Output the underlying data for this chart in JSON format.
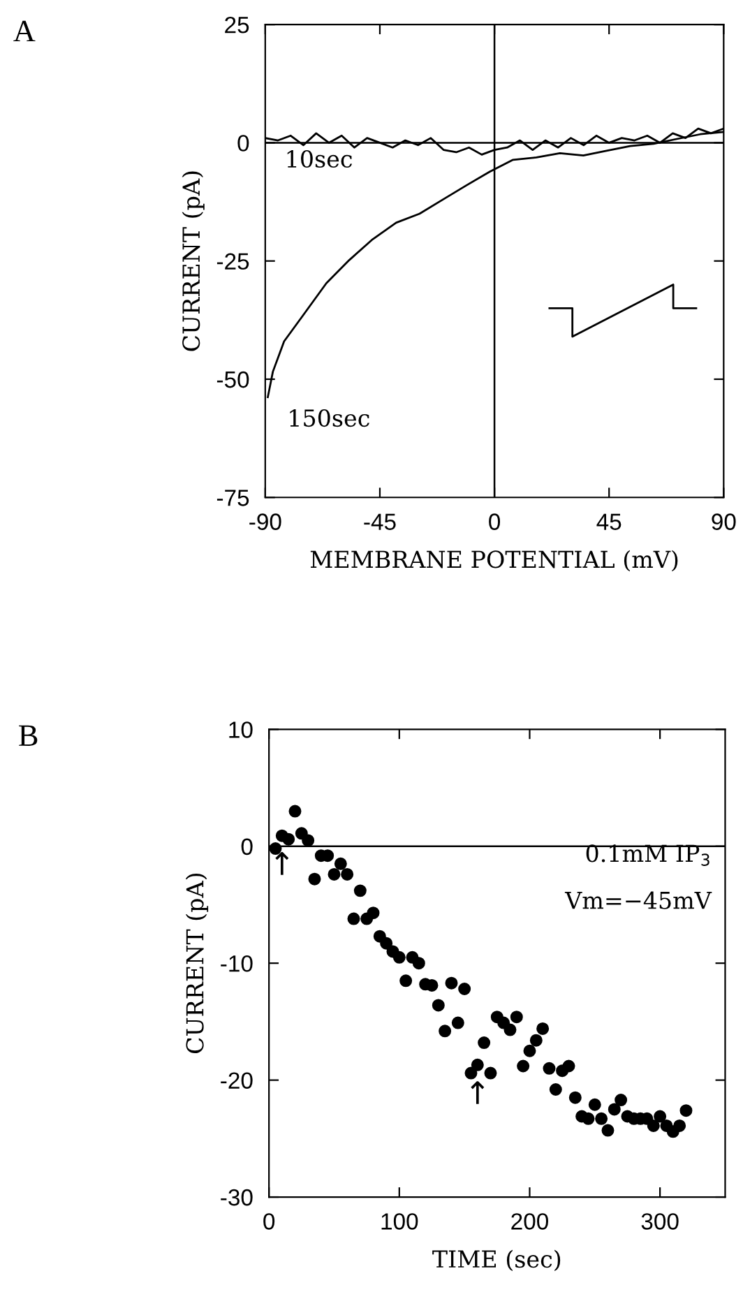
{
  "chart_data": [
    {
      "type": "line",
      "title": "A",
      "xlabel": "MEMBRANE POTENTIAL (mV)",
      "ylabel": "CURRENT (pA)",
      "xlim": [
        -90,
        90
      ],
      "xticks": [
        -90,
        -45,
        0,
        45,
        90
      ],
      "ylim": [
        -75,
        25
      ],
      "yticks": [
        -75,
        -50,
        -25,
        0,
        25
      ],
      "grid": false,
      "legend": false,
      "marker": "none",
      "line_style": "solid",
      "ref_lines": [
        {
          "axis": "x",
          "value": 0,
          "color": "#000000"
        },
        {
          "axis": "y",
          "value": 0,
          "color": "#000000"
        }
      ],
      "series": [
        {
          "name": "10sec",
          "color": "#000000",
          "x": [
            -90,
            -85,
            -80,
            -75,
            -70,
            -65,
            -60,
            -55,
            -50,
            -45,
            -40,
            -35,
            -30,
            -25,
            -20,
            -15,
            -10,
            -5,
            0,
            5,
            10,
            15,
            20,
            25,
            30,
            35,
            40,
            45,
            50,
            55,
            60,
            65,
            70,
            75,
            80,
            85,
            90
          ],
          "values": [
            1,
            0.5,
            1.5,
            -0.5,
            2,
            0,
            1.5,
            -1,
            1,
            0,
            -1,
            0.5,
            -0.5,
            1,
            -1.5,
            -2,
            -1,
            -2.5,
            -1.5,
            -1,
            0.5,
            -1.5,
            0.5,
            -1,
            1,
            -0.5,
            1.5,
            0,
            1,
            0.5,
            1.5,
            0,
            2,
            1,
            3,
            2,
            3
          ]
        },
        {
          "name": "150sec",
          "color": "#000000",
          "x": [
            -89,
            -87,
            -82.6,
            -75.3,
            -66,
            -57,
            -47.8,
            -38.6,
            -29.4,
            -20.2,
            -11,
            -1.8,
            7.3,
            16.5,
            25.7,
            34.9,
            44,
            53.3,
            62.5,
            71.6,
            80.8,
            90
          ],
          "values": [
            -53.8,
            -48.4,
            -42,
            -36.6,
            -29.7,
            -24.8,
            -20.4,
            -16.9,
            -15,
            -12,
            -9,
            -6.1,
            -3.6,
            -3.1,
            -2.2,
            -2.7,
            -1.7,
            -0.7,
            -0.2,
            0.8,
            1.8,
            2.3
          ]
        }
      ]
    },
    {
      "type": "scatter",
      "title": "B",
      "xlabel": "TIME (sec)",
      "ylabel": "CURRENT (pA)",
      "xlim": [
        0,
        350
      ],
      "xticks": [
        0,
        100,
        200,
        300
      ],
      "ylim": [
        -30,
        10
      ],
      "yticks": [
        -30,
        -20,
        -10,
        0,
        10
      ],
      "grid": false,
      "legend": false,
      "marker": "circle",
      "ref_lines": [
        {
          "axis": "y",
          "value": 0,
          "color": "#000000"
        }
      ],
      "annotations": [
        "0.1mM IP$_{3}$",
        "Vm=−45mV",
        {
          "text": "↑",
          "x": 10,
          "y": 0.9
        },
        {
          "text": "↑",
          "x": 160,
          "y": -18.7
        }
      ],
      "series": [
        {
          "color": "#000000",
          "x": [
            5,
            10,
            15,
            20,
            25,
            30,
            35,
            40,
            45,
            50,
            55,
            60,
            65,
            70,
            75,
            80,
            85,
            90,
            95,
            100,
            105,
            110,
            115,
            120,
            125,
            130,
            135,
            140,
            145,
            150,
            155,
            160,
            165,
            170,
            175,
            180,
            185,
            190,
            195,
            200,
            205,
            210,
            215,
            220,
            225,
            230,
            235,
            240,
            245,
            250,
            255,
            260,
            265,
            270,
            275,
            280,
            285,
            290,
            295,
            300,
            305,
            310,
            315,
            320
          ],
          "values": [
            -0.2,
            0.9,
            0.6,
            3.0,
            1.1,
            0.5,
            -2.8,
            -0.8,
            -0.8,
            -2.4,
            -1.5,
            -2.4,
            -6.2,
            -3.8,
            -6.2,
            -5.7,
            -7.7,
            -8.3,
            -9.0,
            -9.5,
            -11.5,
            -9.5,
            -10.0,
            -11.8,
            -11.9,
            -13.6,
            -15.8,
            -11.7,
            -15.1,
            -12.2,
            -19.4,
            -18.7,
            -16.8,
            -19.4,
            -14.6,
            -15.1,
            -15.7,
            -14.6,
            -18.8,
            -17.5,
            -16.6,
            -15.6,
            -19.0,
            -20.8,
            -19.2,
            -18.8,
            -21.5,
            -23.1,
            -23.3,
            -22.1,
            -23.3,
            -24.3,
            -22.5,
            -21.7,
            -23.1,
            -23.3,
            -23.3,
            -23.3,
            -23.9,
            -23.1,
            -23.9,
            -24.4,
            -23.9,
            -22.6
          ]
        }
      ]
    }
  ]
}
